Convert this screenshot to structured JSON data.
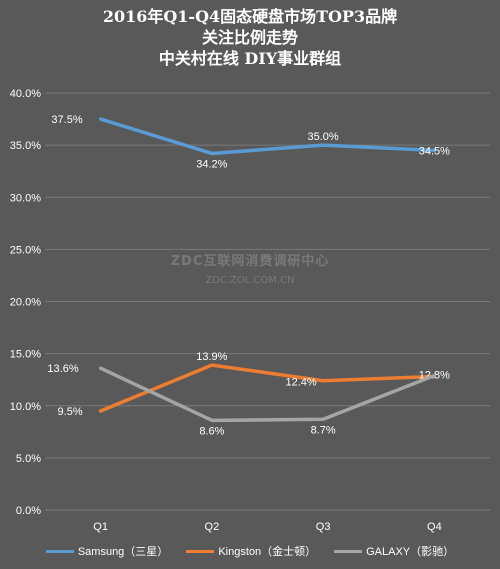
{
  "chart_data": {
    "type": "line",
    "title_lines": [
      "2016年Q1-Q4固态硬盘市场TOP3品牌",
      "关注比例走势",
      "中关村在线 DIY事业群组"
    ],
    "categories": [
      "Q1",
      "Q2",
      "Q3",
      "Q4"
    ],
    "ylim": [
      0,
      40
    ],
    "y_ticks": [
      "0.0%",
      "5.0%",
      "10.0%",
      "15.0%",
      "20.0%",
      "25.0%",
      "30.0%",
      "35.0%",
      "40.0%"
    ],
    "grid": true,
    "legend_position": "bottom",
    "series": [
      {
        "name": "Samsung（三星）",
        "color": "#5B9BD5",
        "values": [
          37.5,
          34.2,
          35.0,
          34.5
        ],
        "labels": [
          "37.5%",
          "34.2%",
          "35.0%",
          "34.5%"
        ]
      },
      {
        "name": "Kingston（金士顿）",
        "color": "#ED7D31",
        "values": [
          9.5,
          13.9,
          12.4,
          12.8
        ],
        "labels": [
          "9.5%",
          "13.9%",
          "12.4%",
          "12.8%"
        ]
      },
      {
        "name": "GALAXY（影驰）",
        "color": "#A5A5A5",
        "values": [
          13.6,
          8.6,
          8.7,
          12.9
        ],
        "labels": [
          "13.6%",
          "8.6%",
          "8.7%",
          ""
        ]
      }
    ]
  },
  "watermark": {
    "main": "ZDC互联网消费调研中心",
    "sub": "ZDC.ZOL.COM.CN"
  }
}
